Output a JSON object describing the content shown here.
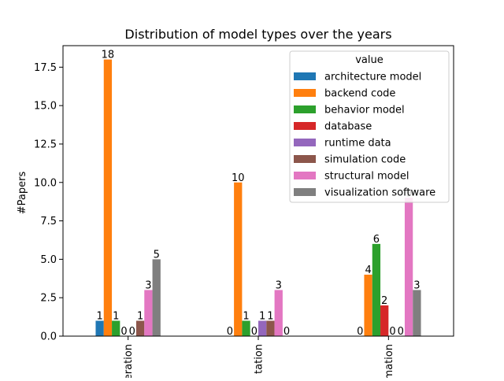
{
  "chart_data": {
    "type": "bar",
    "title": "Distribution of model types over the years",
    "xlabel": "",
    "ylabel": "#Papers",
    "ylim": [
      0,
      18.9
    ],
    "yticks": [
      "0.0",
      "2.5",
      "5.0",
      "7.5",
      "10.0",
      "12.5",
      "15.0",
      "17.5"
    ],
    "categories": [
      "eration",
      "tation",
      "mation"
    ],
    "legend_title": "value",
    "legend_position": "upper right",
    "series": [
      {
        "name": "architecture model",
        "color": "#1f77b4",
        "values": [
          1,
          0,
          0
        ]
      },
      {
        "name": "backend code",
        "color": "#ff7f0e",
        "values": [
          18,
          10,
          4
        ]
      },
      {
        "name": "behavior model",
        "color": "#2ca02c",
        "values": [
          1,
          1,
          6
        ]
      },
      {
        "name": "database",
        "color": "#d62728",
        "values": [
          0,
          0,
          2
        ]
      },
      {
        "name": "runtime data",
        "color": "#9467bd",
        "values": [
          0,
          1,
          0
        ]
      },
      {
        "name": "simulation code",
        "color": "#8c564b",
        "values": [
          1,
          1,
          0
        ]
      },
      {
        "name": "structural model",
        "color": "#e377c2",
        "values": [
          3,
          3,
          9
        ]
      },
      {
        "name": "visualization software",
        "color": "#7f7f7f",
        "values": [
          5,
          0,
          3
        ]
      }
    ]
  }
}
